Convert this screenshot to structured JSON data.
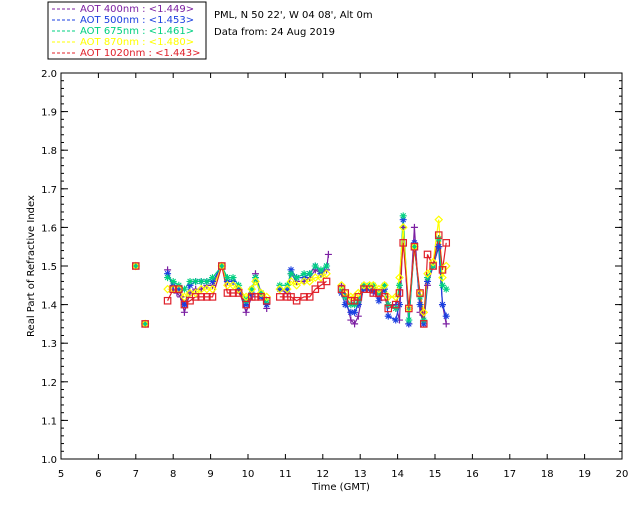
{
  "header": {
    "site": "PML, N 50 22', W 04 08', Alt 0m",
    "date": "Data from: 24 Aug 2019"
  },
  "legend": [
    {
      "label": "AOT  400nm : <1.449>",
      "color": "#7b1fa2"
    },
    {
      "label": "AOT  500nm : <1.453>",
      "color": "#1a3fe0"
    },
    {
      "label": "AOT  675nm : <1.461>",
      "color": "#00d080"
    },
    {
      "label": "AOT  870nm : <1.480>",
      "color": "#ffff00"
    },
    {
      "label": "AOT 1020nm : <1.443>",
      "color": "#e0202a"
    }
  ],
  "chart_data": {
    "type": "scatter",
    "title": "",
    "xlabel": "Time (GMT)",
    "ylabel": "Real Part of Refractive Index",
    "xlim": [
      5,
      20
    ],
    "ylim": [
      1.0,
      2.0
    ],
    "xticks": [
      5,
      6,
      7,
      8,
      9,
      10,
      11,
      12,
      13,
      14,
      15,
      16,
      17,
      18,
      19,
      20
    ],
    "xtick_labels": [
      "5",
      "6",
      "7",
      "8",
      "9",
      "10",
      "11",
      "12",
      "13",
      "14",
      "15",
      "16",
      "17",
      "18",
      "19",
      "20"
    ],
    "yticks": [
      1.0,
      1.1,
      1.2,
      1.3,
      1.4,
      1.5,
      1.6,
      1.7,
      1.8,
      1.9,
      2.0
    ],
    "ytick_labels": [
      "1.0",
      "1.1",
      "1.2",
      "1.3",
      "1.4",
      "1.5",
      "1.6",
      "1.7",
      "1.8",
      "1.9",
      "2.0"
    ],
    "grid": false,
    "series": [
      {
        "name": "AOT  400nm",
        "color": "#7b1fa2",
        "marker": "plus",
        "connected": true,
        "points": [
          [
            7.0,
            1.5
          ],
          [
            7.25,
            1.35
          ],
          [
            7.85,
            1.49
          ],
          [
            8.0,
            1.44
          ],
          [
            8.1,
            1.43
          ],
          [
            8.2,
            1.42
          ],
          [
            8.3,
            1.38
          ],
          [
            8.45,
            1.43
          ],
          [
            8.6,
            1.44
          ],
          [
            8.75,
            1.44
          ],
          [
            8.9,
            1.45
          ],
          [
            9.05,
            1.45
          ],
          [
            9.3,
            1.5
          ],
          [
            9.45,
            1.46
          ],
          [
            9.6,
            1.46
          ],
          [
            9.75,
            1.44
          ],
          [
            9.95,
            1.38
          ],
          [
            10.1,
            1.42
          ],
          [
            10.2,
            1.48
          ],
          [
            10.35,
            1.43
          ],
          [
            10.5,
            1.39
          ],
          [
            10.85,
            1.44
          ],
          [
            11.05,
            1.43
          ],
          [
            11.15,
            1.48
          ],
          [
            11.3,
            1.46
          ],
          [
            11.5,
            1.46
          ],
          [
            11.65,
            1.47
          ],
          [
            11.8,
            1.49
          ],
          [
            11.95,
            1.48
          ],
          [
            12.1,
            1.49
          ],
          [
            12.15,
            1.53
          ],
          [
            12.5,
            1.45
          ],
          [
            12.6,
            1.42
          ],
          [
            12.75,
            1.36
          ],
          [
            12.85,
            1.35
          ],
          [
            12.95,
            1.37
          ],
          [
            13.1,
            1.45
          ],
          [
            13.25,
            1.44
          ],
          [
            13.35,
            1.43
          ],
          [
            13.5,
            1.42
          ],
          [
            13.65,
            1.45
          ],
          [
            13.75,
            1.4
          ],
          [
            13.95,
            1.4
          ],
          [
            14.05,
            1.36
          ],
          [
            14.15,
            1.6
          ],
          [
            14.3,
            1.35
          ],
          [
            14.45,
            1.6
          ],
          [
            14.6,
            1.38
          ],
          [
            14.7,
            1.35
          ],
          [
            14.8,
            1.45
          ],
          [
            14.95,
            1.5
          ],
          [
            15.1,
            1.55
          ],
          [
            15.2,
            1.4
          ],
          [
            15.3,
            1.35
          ]
        ]
      },
      {
        "name": "AOT  500nm",
        "color": "#1a3fe0",
        "marker": "star",
        "connected": true,
        "points": [
          [
            7.0,
            1.5
          ],
          [
            7.25,
            1.35
          ],
          [
            7.85,
            1.48
          ],
          [
            8.0,
            1.45
          ],
          [
            8.15,
            1.44
          ],
          [
            8.3,
            1.4
          ],
          [
            8.45,
            1.45
          ],
          [
            8.6,
            1.46
          ],
          [
            8.75,
            1.46
          ],
          [
            8.9,
            1.46
          ],
          [
            9.05,
            1.46
          ],
          [
            9.3,
            1.5
          ],
          [
            9.45,
            1.46
          ],
          [
            9.6,
            1.46
          ],
          [
            9.75,
            1.44
          ],
          [
            9.95,
            1.4
          ],
          [
            10.1,
            1.43
          ],
          [
            10.2,
            1.47
          ],
          [
            10.35,
            1.42
          ],
          [
            10.5,
            1.4
          ],
          [
            10.85,
            1.44
          ],
          [
            11.05,
            1.44
          ],
          [
            11.15,
            1.49
          ],
          [
            11.3,
            1.47
          ],
          [
            11.5,
            1.47
          ],
          [
            11.65,
            1.48
          ],
          [
            11.8,
            1.5
          ],
          [
            11.95,
            1.48
          ],
          [
            12.1,
            1.5
          ],
          [
            12.5,
            1.43
          ],
          [
            12.6,
            1.4
          ],
          [
            12.75,
            1.38
          ],
          [
            12.85,
            1.38
          ],
          [
            12.95,
            1.4
          ],
          [
            13.1,
            1.44
          ],
          [
            13.25,
            1.44
          ],
          [
            13.35,
            1.44
          ],
          [
            13.5,
            1.41
          ],
          [
            13.65,
            1.44
          ],
          [
            13.75,
            1.37
          ],
          [
            13.95,
            1.36
          ],
          [
            14.05,
            1.4
          ],
          [
            14.15,
            1.62
          ],
          [
            14.3,
            1.35
          ],
          [
            14.45,
            1.56
          ],
          [
            14.6,
            1.4
          ],
          [
            14.7,
            1.35
          ],
          [
            14.8,
            1.46
          ],
          [
            14.95,
            1.5
          ],
          [
            15.1,
            1.55
          ],
          [
            15.2,
            1.4
          ],
          [
            15.3,
            1.37
          ]
        ]
      },
      {
        "name": "AOT  675nm",
        "color": "#00d080",
        "marker": "star",
        "connected": true,
        "points": [
          [
            7.0,
            1.5
          ],
          [
            7.25,
            1.35
          ],
          [
            7.85,
            1.47
          ],
          [
            8.0,
            1.46
          ],
          [
            8.15,
            1.45
          ],
          [
            8.3,
            1.44
          ],
          [
            8.45,
            1.46
          ],
          [
            8.6,
            1.46
          ],
          [
            8.75,
            1.46
          ],
          [
            8.9,
            1.46
          ],
          [
            9.05,
            1.47
          ],
          [
            9.3,
            1.5
          ],
          [
            9.45,
            1.47
          ],
          [
            9.6,
            1.47
          ],
          [
            9.75,
            1.45
          ],
          [
            9.95,
            1.41
          ],
          [
            10.1,
            1.44
          ],
          [
            10.2,
            1.47
          ],
          [
            10.35,
            1.43
          ],
          [
            10.5,
            1.41
          ],
          [
            10.85,
            1.45
          ],
          [
            11.05,
            1.45
          ],
          [
            11.15,
            1.48
          ],
          [
            11.3,
            1.47
          ],
          [
            11.5,
            1.48
          ],
          [
            11.65,
            1.48
          ],
          [
            11.8,
            1.5
          ],
          [
            11.95,
            1.49
          ],
          [
            12.1,
            1.5
          ],
          [
            12.5,
            1.44
          ],
          [
            12.6,
            1.42
          ],
          [
            12.75,
            1.4
          ],
          [
            12.85,
            1.4
          ],
          [
            12.95,
            1.41
          ],
          [
            13.1,
            1.45
          ],
          [
            13.25,
            1.45
          ],
          [
            13.35,
            1.45
          ],
          [
            13.5,
            1.43
          ],
          [
            13.65,
            1.45
          ],
          [
            13.75,
            1.4
          ],
          [
            13.95,
            1.39
          ],
          [
            14.05,
            1.45
          ],
          [
            14.15,
            1.63
          ],
          [
            14.3,
            1.36
          ],
          [
            14.45,
            1.55
          ],
          [
            14.6,
            1.42
          ],
          [
            14.7,
            1.36
          ],
          [
            14.8,
            1.47
          ],
          [
            14.95,
            1.5
          ],
          [
            15.1,
            1.57
          ],
          [
            15.2,
            1.45
          ],
          [
            15.3,
            1.44
          ]
        ]
      },
      {
        "name": "AOT  870nm",
        "color": "#ffff00",
        "marker": "diamond",
        "connected": true,
        "points": [
          [
            7.0,
            1.5
          ],
          [
            7.25,
            1.35
          ],
          [
            7.85,
            1.44
          ],
          [
            8.0,
            1.44
          ],
          [
            8.15,
            1.44
          ],
          [
            8.3,
            1.42
          ],
          [
            8.45,
            1.43
          ],
          [
            8.6,
            1.43
          ],
          [
            8.75,
            1.44
          ],
          [
            8.9,
            1.44
          ],
          [
            9.05,
            1.44
          ],
          [
            9.3,
            1.5
          ],
          [
            9.45,
            1.45
          ],
          [
            9.6,
            1.45
          ],
          [
            9.75,
            1.44
          ],
          [
            9.95,
            1.42
          ],
          [
            10.1,
            1.44
          ],
          [
            10.2,
            1.46
          ],
          [
            10.35,
            1.43
          ],
          [
            10.5,
            1.42
          ],
          [
            10.85,
            1.44
          ],
          [
            11.05,
            1.44
          ],
          [
            11.15,
            1.46
          ],
          [
            11.3,
            1.45
          ],
          [
            11.5,
            1.46
          ],
          [
            11.65,
            1.46
          ],
          [
            11.8,
            1.47
          ],
          [
            11.95,
            1.47
          ],
          [
            12.1,
            1.48
          ],
          [
            12.5,
            1.45
          ],
          [
            12.6,
            1.43
          ],
          [
            12.75,
            1.42
          ],
          [
            12.85,
            1.42
          ],
          [
            12.95,
            1.43
          ],
          [
            13.1,
            1.45
          ],
          [
            13.25,
            1.45
          ],
          [
            13.35,
            1.45
          ],
          [
            13.5,
            1.44
          ],
          [
            13.65,
            1.45
          ],
          [
            13.75,
            1.42
          ],
          [
            13.95,
            1.42
          ],
          [
            14.05,
            1.47
          ],
          [
            14.15,
            1.6
          ],
          [
            14.3,
            1.39
          ],
          [
            14.45,
            1.55
          ],
          [
            14.6,
            1.43
          ],
          [
            14.7,
            1.38
          ],
          [
            14.8,
            1.48
          ],
          [
            14.95,
            1.51
          ],
          [
            15.1,
            1.62
          ],
          [
            15.2,
            1.47
          ],
          [
            15.3,
            1.5
          ]
        ]
      },
      {
        "name": "AOT 1020nm",
        "color": "#e0202a",
        "marker": "square",
        "connected": true,
        "points": [
          [
            7.0,
            1.5
          ],
          [
            7.25,
            1.35
          ],
          [
            7.85,
            1.41
          ],
          [
            8.0,
            1.44
          ],
          [
            8.15,
            1.44
          ],
          [
            8.3,
            1.4
          ],
          [
            8.45,
            1.41
          ],
          [
            8.6,
            1.42
          ],
          [
            8.75,
            1.42
          ],
          [
            8.9,
            1.42
          ],
          [
            9.05,
            1.42
          ],
          [
            9.3,
            1.5
          ],
          [
            9.45,
            1.43
          ],
          [
            9.6,
            1.43
          ],
          [
            9.75,
            1.43
          ],
          [
            9.95,
            1.4
          ],
          [
            10.1,
            1.42
          ],
          [
            10.2,
            1.42
          ],
          [
            10.35,
            1.42
          ],
          [
            10.5,
            1.41
          ],
          [
            10.85,
            1.42
          ],
          [
            11.05,
            1.42
          ],
          [
            11.15,
            1.42
          ],
          [
            11.3,
            1.41
          ],
          [
            11.5,
            1.42
          ],
          [
            11.65,
            1.42
          ],
          [
            11.8,
            1.44
          ],
          [
            11.95,
            1.45
          ],
          [
            12.1,
            1.46
          ],
          [
            12.5,
            1.44
          ],
          [
            12.6,
            1.43
          ],
          [
            12.75,
            1.41
          ],
          [
            12.85,
            1.41
          ],
          [
            12.95,
            1.42
          ],
          [
            13.1,
            1.44
          ],
          [
            13.25,
            1.44
          ],
          [
            13.35,
            1.43
          ],
          [
            13.5,
            1.43
          ],
          [
            13.65,
            1.42
          ],
          [
            13.75,
            1.39
          ],
          [
            13.95,
            1.4
          ],
          [
            14.05,
            1.43
          ],
          [
            14.15,
            1.56
          ],
          [
            14.3,
            1.39
          ],
          [
            14.45,
            1.55
          ],
          [
            14.6,
            1.43
          ],
          [
            14.7,
            1.35
          ],
          [
            14.8,
            1.53
          ],
          [
            14.95,
            1.5
          ],
          [
            15.1,
            1.58
          ],
          [
            15.2,
            1.49
          ],
          [
            15.3,
            1.56
          ]
        ]
      }
    ]
  }
}
